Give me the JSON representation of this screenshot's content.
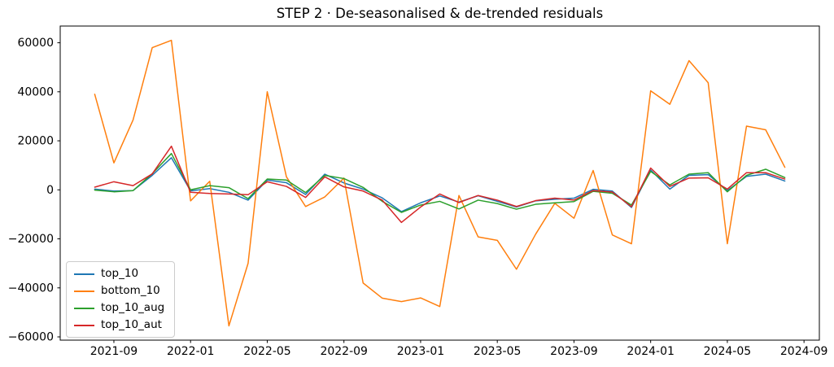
{
  "chart_data": {
    "type": "line",
    "title": "STEP 2 · De-seasonalised & de-trended residuals",
    "xlabel": "",
    "ylabel": "",
    "grid": false,
    "legend_position": "lower left",
    "ylim": [
      -61325,
      66825
    ],
    "xlim_index": [
      -1.8,
      37.8
    ],
    "x_categories": [
      "2021-08",
      "2021-09",
      "2021-10",
      "2021-11",
      "2021-12",
      "2022-01",
      "2022-02",
      "2022-03",
      "2022-04",
      "2022-05",
      "2022-06",
      "2022-07",
      "2022-08",
      "2022-09",
      "2022-10",
      "2022-11",
      "2022-12",
      "2023-01",
      "2023-02",
      "2023-03",
      "2023-04",
      "2023-05",
      "2023-06",
      "2023-07",
      "2023-08",
      "2023-09",
      "2023-10",
      "2023-11",
      "2023-12",
      "2024-01",
      "2024-02",
      "2024-03",
      "2024-04",
      "2024-05",
      "2024-06",
      "2024-07",
      "2024-08"
    ],
    "series": [
      {
        "name": "top_10",
        "color": "#1f77b4",
        "values": [
          300,
          -500,
          -300,
          5900,
          13100,
          -400,
          500,
          -1000,
          -4200,
          4000,
          2900,
          -1900,
          6400,
          2800,
          300,
          -3300,
          -8900,
          -5300,
          -2500,
          -5000,
          -2400,
          -4700,
          -7000,
          -4500,
          -3850,
          -3400,
          200,
          -500,
          -7200,
          8100,
          300,
          5900,
          6200,
          -300,
          5500,
          6400,
          3600
        ]
      },
      {
        "name": "bottom_10",
        "color": "#ff7f0e",
        "values": [
          39000,
          11000,
          28500,
          58000,
          61000,
          -4500,
          3500,
          -55500,
          -30000,
          40000,
          5300,
          -6800,
          -2900,
          4800,
          -38000,
          -44200,
          -45600,
          -44100,
          -47600,
          -2300,
          -19200,
          -20600,
          -32400,
          -18100,
          -5500,
          -11600,
          7900,
          -18400,
          -22000,
          40400,
          34900,
          52700,
          43700,
          -22000,
          26000,
          24500,
          9200
        ]
      },
      {
        "name": "top_10_aug",
        "color": "#2ca02c",
        "values": [
          -100,
          -800,
          -300,
          6600,
          14800,
          0,
          1700,
          900,
          -3600,
          4400,
          4000,
          -1100,
          5900,
          4600,
          1000,
          -4700,
          -9200,
          -6200,
          -4700,
          -7800,
          -4200,
          -5600,
          -7900,
          -5900,
          -5300,
          -4800,
          -600,
          -1400,
          -6200,
          7500,
          2000,
          6400,
          7000,
          -800,
          5900,
          8400,
          5000
        ]
      },
      {
        "name": "top_10_aut",
        "color": "#d62728",
        "values": [
          1100,
          3300,
          1700,
          6500,
          17800,
          -1000,
          -1500,
          -1700,
          -2000,
          3300,
          1400,
          -3100,
          5300,
          1200,
          -500,
          -4200,
          -13300,
          -7000,
          -1700,
          -5200,
          -2300,
          -4200,
          -6800,
          -4400,
          -3400,
          -4200,
          -300,
          -900,
          -6900,
          8900,
          1400,
          4800,
          4900,
          300,
          7000,
          7000,
          4400
        ]
      }
    ],
    "y_ticks": [
      {
        "value": -60000,
        "label": "−60000"
      },
      {
        "value": -40000,
        "label": "−40000"
      },
      {
        "value": -20000,
        "label": "−20000"
      },
      {
        "value": 0,
        "label": "0"
      },
      {
        "value": 20000,
        "label": "20000"
      },
      {
        "value": 40000,
        "label": "40000"
      },
      {
        "value": 60000,
        "label": "60000"
      }
    ],
    "x_ticks": [
      {
        "index": 1,
        "label": "2021-09"
      },
      {
        "index": 5,
        "label": "2022-01"
      },
      {
        "index": 9,
        "label": "2022-05"
      },
      {
        "index": 13,
        "label": "2022-09"
      },
      {
        "index": 17,
        "label": "2023-01"
      },
      {
        "index": 21,
        "label": "2023-05"
      },
      {
        "index": 25,
        "label": "2023-09"
      },
      {
        "index": 29,
        "label": "2024-01"
      },
      {
        "index": 33,
        "label": "2024-05"
      },
      {
        "index": 37,
        "label": "2024-09"
      }
    ]
  }
}
